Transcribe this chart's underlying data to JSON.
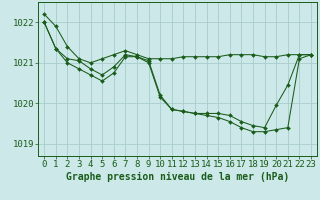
{
  "background_color": "#cce8e8",
  "grid_color": "#aacccc",
  "line_color": "#1a5c1a",
  "marker_color": "#1a5c1a",
  "title": "Graphe pression niveau de la mer (hPa)",
  "xlabel_fontsize": 6.5,
  "ylabel_fontsize": 6.5,
  "title_fontsize": 7,
  "xlim": [
    -0.5,
    23.5
  ],
  "ylim": [
    1018.7,
    1022.5
  ],
  "yticks": [
    1019,
    1020,
    1021,
    1022
  ],
  "xticks": [
    0,
    1,
    2,
    3,
    4,
    5,
    6,
    7,
    8,
    9,
    10,
    11,
    12,
    13,
    14,
    15,
    16,
    17,
    18,
    19,
    20,
    21,
    22,
    23
  ],
  "series": [
    [
      1022.2,
      1021.9,
      1021.4,
      1021.1,
      1021.0,
      1021.1,
      1021.2,
      1021.3,
      1021.2,
      1021.1,
      1021.1,
      1021.1,
      1021.15,
      1021.15,
      1021.15,
      1021.15,
      1021.2,
      1021.2,
      1021.2,
      1021.15,
      1021.15,
      1021.2,
      1021.2,
      1021.2
    ],
    [
      1022.0,
      1021.35,
      1021.1,
      1021.05,
      1020.85,
      1020.7,
      1020.9,
      1021.2,
      1021.15,
      1021.05,
      1020.2,
      1019.85,
      1019.8,
      1019.75,
      1019.75,
      1019.75,
      1019.7,
      1019.55,
      1019.45,
      1019.4,
      1019.95,
      1020.45,
      1021.2,
      1021.2
    ],
    [
      1022.0,
      1021.35,
      1021.0,
      1020.85,
      1020.7,
      1020.55,
      1020.75,
      1021.15,
      1021.15,
      1021.0,
      1020.15,
      1019.85,
      1019.8,
      1019.75,
      1019.7,
      1019.65,
      1019.55,
      1019.4,
      1019.3,
      1019.3,
      1019.35,
      1019.4,
      1021.1,
      1021.2
    ]
  ]
}
